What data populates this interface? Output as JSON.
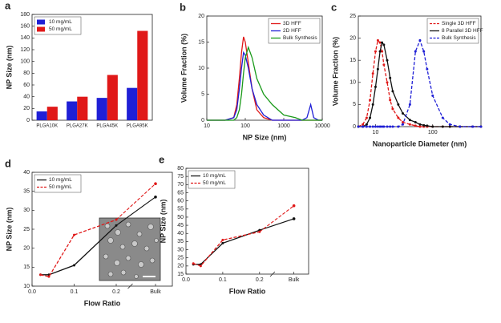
{
  "chart_data": [
    {
      "type": "bar",
      "label": "a",
      "y_label": "NP Size (nm)",
      "categories": [
        "PLGA10K",
        "PLGA27K",
        "PLGA45K",
        "PLGA95K"
      ],
      "series": [
        {
          "name": "10 mg/mL",
          "color": "#1f1fd6",
          "values": [
            15,
            32,
            38,
            55
          ]
        },
        {
          "name": "50 mg/mL",
          "color": "#e01818",
          "values": [
            23,
            40,
            77,
            152
          ]
        }
      ],
      "ylim": [
        0,
        180
      ],
      "yticks": [
        0,
        20,
        40,
        60,
        80,
        100,
        120,
        140,
        160,
        180
      ],
      "legend": "upper left"
    },
    {
      "type": "line",
      "label": "b",
      "x_label": "NP Size (nm)",
      "y_label": "Volume Fraction (%)",
      "xscale": "log",
      "x": [
        10,
        30,
        50,
        60,
        70,
        80,
        90,
        100,
        120,
        150,
        200,
        300,
        500,
        1000,
        2000,
        3000,
        4000,
        5000,
        6000,
        8000,
        10000
      ],
      "series": [
        {
          "name": "3D HFF",
          "color": "#e01818",
          "values": [
            0,
            0,
            0.5,
            3,
            8,
            13,
            16,
            15,
            11,
            6,
            2,
            0.5,
            0,
            0,
            0,
            0,
            0,
            0,
            0,
            0,
            0
          ]
        },
        {
          "name": "2D HFF",
          "color": "#1f1fd6",
          "values": [
            0,
            0,
            0.5,
            2,
            6,
            10,
            13,
            12.5,
            10,
            6,
            3,
            1,
            0,
            0,
            0,
            0,
            0.5,
            3,
            0.5,
            0,
            0
          ]
        },
        {
          "name": "Bulk Synthesis",
          "color": "#1a9a1a",
          "values": [
            0,
            0,
            0,
            0.5,
            2,
            5,
            9,
            12,
            14,
            12,
            8,
            5,
            3,
            1,
            0.5,
            0,
            0,
            0,
            0,
            0,
            0
          ]
        }
      ],
      "xlim": [
        10,
        10000
      ],
      "xticks": [
        10,
        100,
        1000,
        10000
      ],
      "ylim": [
        0,
        20
      ],
      "yticks": [
        0,
        5,
        10,
        15,
        20
      ],
      "legend": "upper right"
    },
    {
      "type": "line",
      "label": "c",
      "x_label": "Nanoparticle Diameter (nm)",
      "y_label": "Volume Fraction (%)",
      "xscale": "log",
      "x": [
        5,
        6,
        7,
        8,
        9,
        10,
        11,
        12,
        13,
        14,
        16,
        18,
        20,
        25,
        30,
        40,
        50,
        60,
        70,
        80,
        100,
        150,
        200,
        300,
        500,
        700
      ],
      "series": [
        {
          "name": "Single 3D HFF",
          "color": "#e01818",
          "dash": true,
          "marker": true,
          "values": [
            0,
            0.5,
            2,
            6,
            12,
            17,
            19.5,
            19,
            17,
            14,
            10,
            6,
            4,
            2,
            1,
            0.5,
            0.2,
            0,
            0,
            0,
            0,
            0,
            0,
            0,
            0,
            0
          ]
        },
        {
          "name": "8 Parallel 3D HFF",
          "color": "#111111",
          "marker": true,
          "values": [
            0,
            0,
            0.5,
            2,
            5,
            9,
            13,
            17,
            19,
            18.5,
            15,
            11,
            8,
            5,
            3,
            1.5,
            1,
            0.5,
            0.3,
            0.2,
            0,
            0,
            0,
            0,
            0,
            0
          ]
        },
        {
          "name": "Bulk Synthesis",
          "color": "#1f1fd6",
          "dash": true,
          "marker": true,
          "values": [
            0,
            0,
            0,
            0,
            0,
            0,
            0,
            0,
            0,
            0,
            0,
            0,
            0,
            0,
            0.5,
            5,
            17,
            19.5,
            17,
            13,
            7,
            2,
            0.5,
            0,
            0,
            0
          ]
        }
      ],
      "xlim": [
        5,
        700
      ],
      "xticks": [
        10,
        100
      ],
      "ylim": [
        0,
        25
      ],
      "yticks": [
        0,
        5,
        10,
        15,
        20,
        25
      ],
      "legend": "upper right"
    },
    {
      "type": "line",
      "label": "d",
      "x_label": "Flow Ratio",
      "y_label": "NP Size (nm)",
      "x": [
        0.02,
        0.04,
        0.1,
        0.2
      ],
      "bulk_label": "Bulk",
      "series": [
        {
          "name": "10 mg/mL",
          "color": "#111111",
          "marker": true,
          "values": [
            13,
            13,
            15.5,
            26
          ],
          "bulk": 33.5
        },
        {
          "name": "50 mg/mL",
          "color": "#e01818",
          "dash": true,
          "marker": true,
          "values": [
            13,
            12.5,
            23.5,
            27.5
          ],
          "bulk": 37
        }
      ],
      "xlim": [
        0,
        0.22
      ],
      "xticks": [
        {
          "value": 0,
          "label": "0.0"
        },
        0.1,
        0.2
      ],
      "ylim": [
        10,
        40
      ],
      "yticks": [
        10,
        15,
        20,
        25,
        30,
        35,
        40
      ],
      "legend": "upper left"
    },
    {
      "type": "line",
      "label": "e",
      "x_label": "Flow Ratio",
      "y_label": "NP Size (nm)",
      "x": [
        0.02,
        0.04,
        0.1,
        0.2
      ],
      "bulk_label": "Bulk",
      "series": [
        {
          "name": "10 mg/mL",
          "color": "#111111",
          "marker": true,
          "values": [
            21,
            21,
            34,
            42
          ],
          "bulk": 49
        },
        {
          "name": "50 mg/mL",
          "color": "#e01818",
          "dash": true,
          "marker": true,
          "values": [
            21.5,
            20,
            36,
            41
          ],
          "bulk": 57
        }
      ],
      "xlim": [
        0,
        0.22
      ],
      "xticks": [
        {
          "value": 0,
          "label": "0.0"
        },
        0.1,
        0.2
      ],
      "ylim": [
        15,
        80
      ],
      "yticks": [
        15,
        20,
        25,
        30,
        35,
        40,
        45,
        50,
        55,
        60,
        65,
        70,
        75,
        80
      ],
      "legend": "upper left"
    }
  ]
}
